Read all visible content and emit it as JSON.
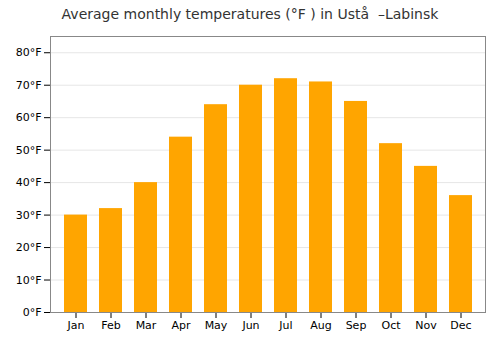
{
  "chart_data": {
    "type": "bar",
    "title": "Average monthly temperatures (°F ) in Ustå  –Labinsk",
    "categories": [
      "Jan",
      "Feb",
      "Mar",
      "Apr",
      "May",
      "Jun",
      "Jul",
      "Aug",
      "Sep",
      "Oct",
      "Nov",
      "Dec"
    ],
    "values": [
      30,
      32,
      40,
      54,
      64,
      70,
      72,
      71,
      65,
      52,
      45,
      36
    ],
    "color": "#FFA500",
    "ylim": [
      0,
      85
    ],
    "yticks": [
      {
        "value": 0,
        "label": "0°F"
      },
      {
        "value": 10,
        "label": "10°F"
      },
      {
        "value": 20,
        "label": "20°F"
      },
      {
        "value": 30,
        "label": "30°F"
      },
      {
        "value": 40,
        "label": "40°F"
      },
      {
        "value": 50,
        "label": "50°F"
      },
      {
        "value": 60,
        "label": "60°F"
      },
      {
        "value": 70,
        "label": "70°F"
      },
      {
        "value": 80,
        "label": "80°F"
      }
    ],
    "grid": true
  }
}
